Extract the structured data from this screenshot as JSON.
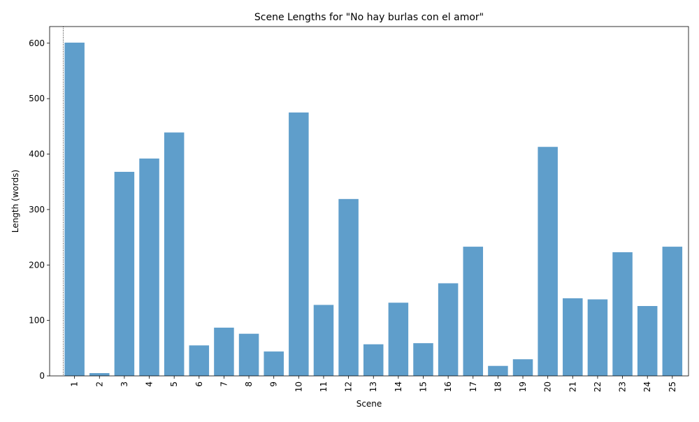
{
  "chart_data": {
    "type": "bar",
    "title": "Scene Lengths for \"No hay burlas con el amor\"",
    "xlabel": "Scene",
    "ylabel": "Length (words)",
    "categories": [
      "1",
      "2",
      "3",
      "4",
      "5",
      "6",
      "7",
      "8",
      "9",
      "10",
      "11",
      "12",
      "13",
      "14",
      "15",
      "16",
      "17",
      "18",
      "19",
      "20",
      "21",
      "22",
      "23",
      "24",
      "25"
    ],
    "values": [
      601,
      5,
      368,
      392,
      439,
      55,
      87,
      76,
      44,
      475,
      128,
      319,
      57,
      132,
      59,
      167,
      233,
      18,
      30,
      413,
      140,
      138,
      223,
      126,
      233
    ],
    "ylim": [
      0,
      630
    ],
    "yticks": [
      0,
      100,
      200,
      300,
      400,
      500,
      600
    ],
    "grid": false,
    "legend": "none",
    "bar_color": "#5f9ecb",
    "bar_opacity": 1,
    "vertical_marker": {
      "x": "1",
      "style": "dotted"
    }
  }
}
